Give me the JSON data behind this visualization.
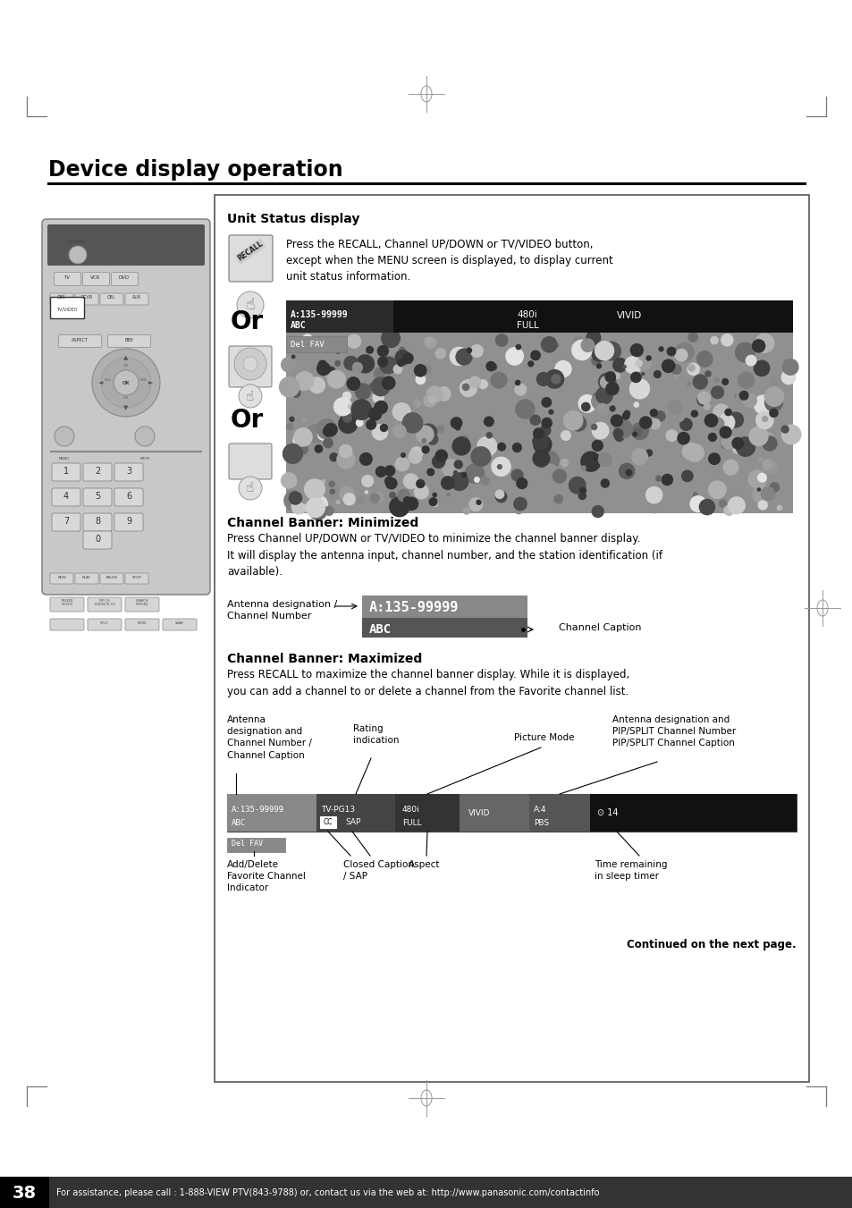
{
  "bg_color": "#ffffff",
  "title": "Device display operation",
  "page_number": "38",
  "footer_text": "For assistance, please call : 1-888-VIEW PTV(843-9788) or, contact us via the web at: http://www.panasonic.com/contactinfo",
  "section1_title": "Unit Status display",
  "section1_body": "Press the RECALL, Channel UP/DOWN or TV/VIDEO button,\nexcept when the MENU screen is displayed, to display current\nunit status information.",
  "section2_title": "Channel Banner: Minimized",
  "section2_body": "Press Channel UP/DOWN or TV/VIDEO to minimize the channel banner display.\nIt will display the antenna input, channel number, and the station identification (if\navailable).",
  "section3_title": "Channel Banner: Maximized",
  "section3_body": "Press RECALL to maximize the channel banner display. While it is displayed,\nyou can add a channel to or delete a channel from the Favorite channel list.",
  "minimized_label1": "Antenna designation /\nChannel Number",
  "minimized_channel": "A:135-99999",
  "minimized_station": "ABC",
  "minimized_caption_label": "Channel Caption",
  "max_label1": "Antenna\ndesignation and\nChannel Number /\nChannel Caption",
  "max_label2": "Rating\nindication",
  "max_label3": "Picture Mode",
  "max_label4": "Antenna designation and\nPIP/SPLIT Channel Number\nPIP/SPLIT Channel Caption",
  "max_label5": "Add/Delete\nFavorite Channel\nIndicator",
  "max_label6": "Closed Caption\n/ SAP",
  "max_label7": "Aspect",
  "max_label8": "Time remaining\nin sleep timer",
  "continued_text": "Continued on the next page.",
  "or_text": "Or"
}
